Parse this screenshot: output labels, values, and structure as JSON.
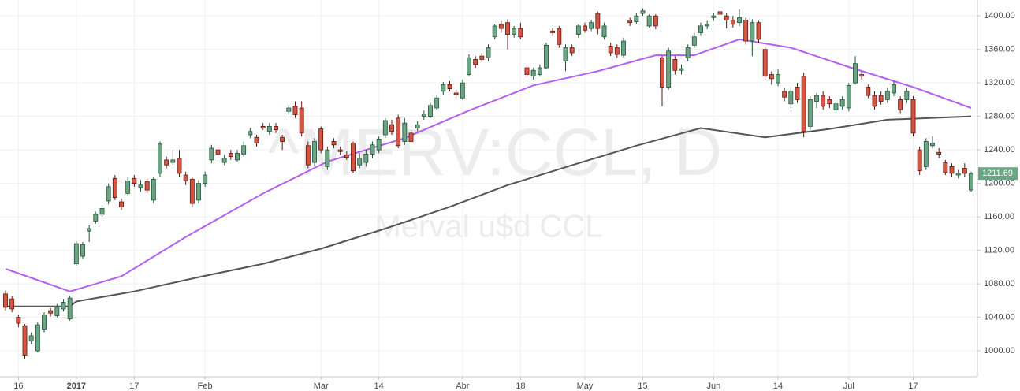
{
  "chart_data": {
    "type": "candlestick",
    "watermark": "^MERV:CCL, D",
    "subtitle": "Merval u$d CCL",
    "categories": [
      null,
      null,
      "16",
      null,
      null,
      null,
      null,
      null,
      null,
      null,
      null,
      "2017",
      null,
      null,
      null,
      null,
      null,
      null,
      null,
      null,
      "17",
      null,
      null,
      null,
      null,
      null,
      null,
      null,
      null,
      null,
      null,
      "Feb",
      null,
      null,
      null,
      null,
      null,
      null,
      null,
      null,
      null,
      null,
      null,
      null,
      null,
      null,
      null,
      null,
      null,
      "Mar",
      null,
      null,
      null,
      null,
      null,
      null,
      null,
      null,
      "14",
      null,
      null,
      null,
      null,
      null,
      null,
      null,
      null,
      null,
      null,
      null,
      null,
      "Abr",
      null,
      null,
      null,
      null,
      null,
      null,
      null,
      null,
      "18",
      null,
      null,
      null,
      null,
      null,
      null,
      null,
      null,
      null,
      "May",
      null,
      null,
      null,
      null,
      null,
      null,
      null,
      null,
      "15",
      null,
      null,
      null,
      null,
      null,
      null,
      null,
      null,
      null,
      null,
      "Jun",
      null,
      null,
      null,
      null,
      null,
      null,
      null,
      null,
      null,
      "14",
      null,
      null,
      null,
      null,
      null,
      null,
      null,
      null,
      null,
      null,
      "Jul",
      null,
      null,
      null,
      null,
      null,
      null,
      null,
      null,
      null,
      "17",
      null,
      null,
      null,
      null,
      null,
      null,
      null,
      null,
      null
    ],
    "open": [
      1068,
      1062,
      1040,
      1030,
      1012,
      1000,
      1026,
      1048,
      1042,
      1050,
      1038,
      1104,
      1113,
      1143,
      1155,
      1163,
      1179,
      1206,
      1178,
      1188,
      1206,
      1195,
      1202,
      1180,
      1212,
      1228,
      1225,
      1230,
      1210,
      1205,
      1180,
      1200,
      1228,
      1240,
      1225,
      1236,
      1228,
      1235,
      1258,
      1255,
      1268,
      1262,
      1268,
      1255,
      1286,
      1292,
      1290,
      1245,
      1225,
      1265,
      1220,
      1250,
      1240,
      1234,
      1248,
      1222,
      1225,
      1235,
      1240,
      1258,
      1270,
      1278,
      1250,
      1260,
      1266,
      1280,
      1280,
      1290,
      1310,
      1318,
      1308,
      1302,
      1330,
      1348,
      1352,
      1350,
      1375,
      1390,
      1392,
      1378,
      1385,
      1338,
      1328,
      1330,
      1338,
      1382,
      1385,
      1346,
      1362,
      1378,
      1388,
      1385,
      1403,
      1375,
      1364,
      1362,
      1353,
      1395,
      1393,
      1403,
      1388,
      1400,
      1350,
      1315,
      1348,
      1335,
      1350,
      1365,
      1380,
      1388,
      1398,
      1405,
      1400,
      1395,
      1392,
      1395,
      1370,
      1392,
      1360,
      1330,
      1320,
      1310,
      1295,
      1315,
      1328,
      1268,
      1298,
      1305,
      1300,
      1288,
      1292,
      1290,
      1320,
      1330,
      1315,
      1305,
      1305,
      1300,
      1308,
      1300,
      1300,
      1300,
      1240,
      1220,
      1245,
      1237,
      1225,
      1220,
      1210,
      1218,
      1192
    ],
    "high": [
      1072,
      1065,
      1043,
      1032,
      1022,
      1034,
      1046,
      1051,
      1056,
      1062,
      1066,
      1131,
      1130,
      1150,
      1166,
      1174,
      1200,
      1210,
      1182,
      1208,
      1210,
      1204,
      1206,
      1208,
      1250,
      1232,
      1240,
      1240,
      1214,
      1208,
      1204,
      1214,
      1246,
      1244,
      1234,
      1240,
      1240,
      1250,
      1266,
      1258,
      1272,
      1272,
      1272,
      1258,
      1294,
      1298,
      1298,
      1250,
      1254,
      1268,
      1244,
      1254,
      1244,
      1238,
      1250,
      1236,
      1240,
      1250,
      1256,
      1278,
      1276,
      1282,
      1278,
      1264,
      1274,
      1287,
      1296,
      1306,
      1321,
      1322,
      1312,
      1324,
      1354,
      1352,
      1356,
      1366,
      1390,
      1394,
      1396,
      1388,
      1392,
      1342,
      1338,
      1342,
      1368,
      1386,
      1388,
      1366,
      1366,
      1390,
      1392,
      1395,
      1405,
      1392,
      1368,
      1366,
      1374,
      1398,
      1404,
      1409,
      1402,
      1402,
      1352,
      1362,
      1352,
      1342,
      1366,
      1380,
      1392,
      1394,
      1404,
      1408,
      1404,
      1400,
      1408,
      1398,
      1396,
      1394,
      1364,
      1334,
      1336,
      1314,
      1314,
      1320,
      1332,
      1304,
      1308,
      1310,
      1304,
      1300,
      1304,
      1320,
      1352,
      1334,
      1318,
      1310,
      1310,
      1314,
      1322,
      1304,
      1314,
      1304,
      1244,
      1254,
      1256,
      1242,
      1228,
      1224,
      1216,
      1224,
      1214
    ],
    "low": [
      1048,
      1046,
      1028,
      990,
      1008,
      998,
      1022,
      1041,
      1040,
      1047,
      1036,
      1102,
      1110,
      1130,
      1152,
      1160,
      1175,
      1180,
      1168,
      1186,
      1196,
      1190,
      1188,
      1176,
      1208,
      1218,
      1222,
      1208,
      1198,
      1172,
      1176,
      1196,
      1224,
      1230,
      1222,
      1228,
      1226,
      1232,
      1254,
      1244,
      1264,
      1258,
      1260,
      1240,
      1282,
      1278,
      1256,
      1218,
      1220,
      1236,
      1216,
      1242,
      1234,
      1228,
      1212,
      1218,
      1220,
      1230,
      1236,
      1254,
      1258,
      1242,
      1246,
      1246,
      1262,
      1276,
      1278,
      1288,
      1306,
      1310,
      1302,
      1300,
      1328,
      1338,
      1344,
      1346,
      1372,
      1380,
      1360,
      1374,
      1372,
      1326,
      1324,
      1328,
      1336,
      1376,
      1362,
      1334,
      1352,
      1374,
      1380,
      1382,
      1378,
      1372,
      1352,
      1350,
      1350,
      1388,
      1390,
      1400,
      1386,
      1384,
      1292,
      1312,
      1330,
      1330,
      1346,
      1362,
      1376,
      1384,
      1394,
      1398,
      1385,
      1386,
      1388,
      1366,
      1352,
      1368,
      1324,
      1318,
      1316,
      1298,
      1290,
      1296,
      1255,
      1264,
      1290,
      1288,
      1290,
      1284,
      1288,
      1286,
      1318,
      1324,
      1302,
      1288,
      1294,
      1296,
      1304,
      1284,
      1296,
      1256,
      1210,
      1216,
      1242,
      1230,
      1210,
      1208,
      1206,
      1208,
      1190
    ],
    "close": [
      1052,
      1050,
      1033,
      995,
      1018,
      1031,
      1043,
      1045,
      1052,
      1058,
      1063,
      1128,
      1127,
      1146,
      1163,
      1170,
      1196,
      1183,
      1172,
      1203,
      1200,
      1198,
      1192,
      1205,
      1247,
      1222,
      1228,
      1212,
      1203,
      1176,
      1200,
      1210,
      1242,
      1235,
      1230,
      1232,
      1236,
      1245,
      1262,
      1248,
      1266,
      1268,
      1264,
      1250,
      1290,
      1282,
      1260,
      1222,
      1250,
      1240,
      1240,
      1246,
      1238,
      1231,
      1215,
      1230,
      1235,
      1246,
      1253,
      1275,
      1262,
      1245,
      1272,
      1250,
      1270,
      1283,
      1293,
      1302,
      1318,
      1313,
      1306,
      1320,
      1350,
      1342,
      1348,
      1362,
      1388,
      1385,
      1378,
      1385,
      1375,
      1330,
      1335,
      1338,
      1365,
      1380,
      1366,
      1362,
      1356,
      1388,
      1383,
      1392,
      1385,
      1388,
      1356,
      1354,
      1370,
      1392,
      1400,
      1406,
      1400,
      1388,
      1315,
      1358,
      1335,
      1337,
      1362,
      1375,
      1388,
      1390,
      1400,
      1402,
      1395,
      1390,
      1398,
      1370,
      1392,
      1372,
      1328,
      1325,
      1330,
      1303,
      1310,
      1300,
      1262,
      1300,
      1305,
      1292,
      1295,
      1295,
      1300,
      1317,
      1343,
      1328,
      1305,
      1292,
      1298,
      1310,
      1318,
      1288,
      1310,
      1260,
      1215,
      1250,
      1248,
      1235,
      1213,
      1212,
      1212,
      1212,
      1212
    ],
    "up_color": "#6ba583",
    "down_color": "#d75442",
    "series": [
      {
        "color": "#b45ff0",
        "x": [
          0,
          10,
          18,
          28,
          40,
          50,
          62,
          72,
          82,
          92,
          101,
          107,
          114,
          122,
          131,
          141,
          150
        ],
        "values": [
          1098,
          1071,
          1089,
          1136,
          1188,
          1226,
          1254,
          1287,
          1317,
          1334,
          1353,
          1353,
          1372,
          1362,
          1339,
          1315,
          1290
        ]
      },
      {
        "color": "#555555",
        "x": [
          0,
          10,
          11,
          20,
          30,
          40,
          49,
          59,
          69,
          78,
          89,
          98,
          108,
          118,
          128,
          137,
          150
        ],
        "values": [
          1053,
          1053,
          1059,
          1071,
          1088,
          1104,
          1122,
          1146,
          1172,
          1198,
          1224,
          1245,
          1266,
          1255,
          1265,
          1276,
          1280
        ]
      }
    ],
    "ylim": [
      969,
      1419
    ],
    "yticks": [
      {
        "value": 1000,
        "label": "1000.00"
      },
      {
        "value": 1040,
        "label": "1040.00"
      },
      {
        "value": 1080,
        "label": "1080.00"
      },
      {
        "value": 1120,
        "label": "1120.00"
      },
      {
        "value": 1160,
        "label": "1160.00"
      },
      {
        "value": 1200,
        "label": "1200.00"
      },
      {
        "value": 1240,
        "label": "1240.00"
      },
      {
        "value": 1280,
        "label": "1280.00"
      },
      {
        "value": 1320,
        "label": "1320.00"
      },
      {
        "value": 1360,
        "label": "1360.00"
      },
      {
        "value": 1400,
        "label": "1400.00"
      }
    ],
    "grid": true,
    "last_price": 1211.69
  }
}
